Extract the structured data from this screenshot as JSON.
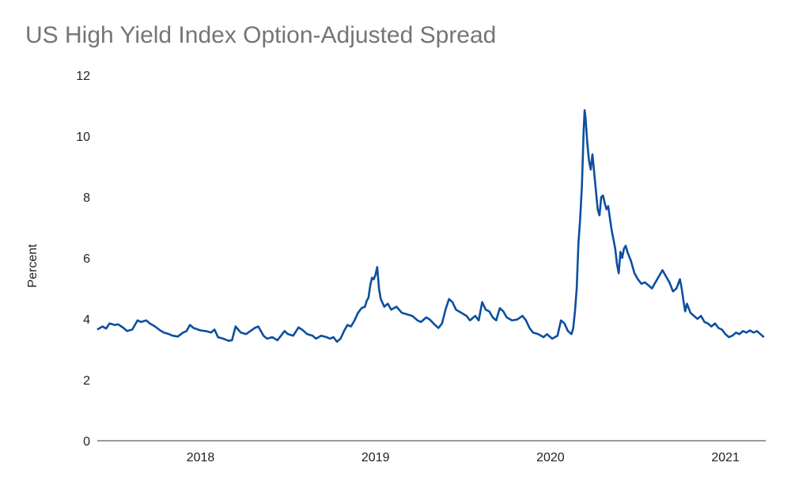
{
  "chart_data": {
    "type": "line",
    "title": "US High Yield Index Option-Adjusted Spread",
    "xlabel": "",
    "ylabel": "Percent",
    "xlim": [
      2017.43,
      2021.25
    ],
    "ylim": [
      0,
      12
    ],
    "yticks": [
      0,
      2,
      4,
      6,
      8,
      10,
      12
    ],
    "xticks": [
      2018,
      2019,
      2020,
      2021
    ],
    "grid": false,
    "legend": "none",
    "series": [
      {
        "color": "#0b4f9f",
        "points": [
          [
            2017.43,
            3.65
          ],
          [
            2017.46,
            3.75
          ],
          [
            2017.48,
            3.68
          ],
          [
            2017.5,
            3.85
          ],
          [
            2017.53,
            3.8
          ],
          [
            2017.55,
            3.82
          ],
          [
            2017.58,
            3.7
          ],
          [
            2017.6,
            3.6
          ],
          [
            2017.63,
            3.65
          ],
          [
            2017.66,
            3.95
          ],
          [
            2017.68,
            3.9
          ],
          [
            2017.71,
            3.95
          ],
          [
            2017.73,
            3.85
          ],
          [
            2017.76,
            3.75
          ],
          [
            2017.79,
            3.62
          ],
          [
            2017.81,
            3.55
          ],
          [
            2017.84,
            3.5
          ],
          [
            2017.86,
            3.45
          ],
          [
            2017.89,
            3.42
          ],
          [
            2017.92,
            3.55
          ],
          [
            2017.94,
            3.6
          ],
          [
            2017.96,
            3.8
          ],
          [
            2017.98,
            3.7
          ],
          [
            2018.02,
            3.62
          ],
          [
            2018.05,
            3.6
          ],
          [
            2018.08,
            3.55
          ],
          [
            2018.1,
            3.65
          ],
          [
            2018.12,
            3.4
          ],
          [
            2018.15,
            3.35
          ],
          [
            2018.18,
            3.28
          ],
          [
            2018.2,
            3.3
          ],
          [
            2018.22,
            3.75
          ],
          [
            2018.25,
            3.55
          ],
          [
            2018.28,
            3.5
          ],
          [
            2018.3,
            3.58
          ],
          [
            2018.33,
            3.7
          ],
          [
            2018.35,
            3.75
          ],
          [
            2018.38,
            3.45
          ],
          [
            2018.4,
            3.35
          ],
          [
            2018.43,
            3.4
          ],
          [
            2018.46,
            3.3
          ],
          [
            2018.48,
            3.45
          ],
          [
            2018.5,
            3.6
          ],
          [
            2018.52,
            3.5
          ],
          [
            2018.55,
            3.45
          ],
          [
            2018.58,
            3.72
          ],
          [
            2018.6,
            3.65
          ],
          [
            2018.63,
            3.5
          ],
          [
            2018.66,
            3.45
          ],
          [
            2018.68,
            3.35
          ],
          [
            2018.71,
            3.45
          ],
          [
            2018.74,
            3.4
          ],
          [
            2018.76,
            3.35
          ],
          [
            2018.78,
            3.4
          ],
          [
            2018.8,
            3.25
          ],
          [
            2018.82,
            3.35
          ],
          [
            2018.84,
            3.6
          ],
          [
            2018.86,
            3.8
          ],
          [
            2018.88,
            3.75
          ],
          [
            2018.9,
            3.95
          ],
          [
            2018.92,
            4.2
          ],
          [
            2018.94,
            4.35
          ],
          [
            2018.96,
            4.4
          ],
          [
            2018.97,
            4.6
          ],
          [
            2018.98,
            4.7
          ],
          [
            2018.99,
            5.1
          ],
          [
            2019.0,
            5.35
          ],
          [
            2019.01,
            5.3
          ],
          [
            2019.02,
            5.45
          ],
          [
            2019.03,
            5.7
          ],
          [
            2019.04,
            5.0
          ],
          [
            2019.05,
            4.65
          ],
          [
            2019.07,
            4.4
          ],
          [
            2019.09,
            4.5
          ],
          [
            2019.11,
            4.3
          ],
          [
            2019.14,
            4.4
          ],
          [
            2019.17,
            4.2
          ],
          [
            2019.2,
            4.15
          ],
          [
            2019.23,
            4.1
          ],
          [
            2019.26,
            3.95
          ],
          [
            2019.28,
            3.9
          ],
          [
            2019.31,
            4.05
          ],
          [
            2019.33,
            3.98
          ],
          [
            2019.36,
            3.8
          ],
          [
            2019.38,
            3.7
          ],
          [
            2019.4,
            3.85
          ],
          [
            2019.42,
            4.3
          ],
          [
            2019.44,
            4.65
          ],
          [
            2019.46,
            4.55
          ],
          [
            2019.48,
            4.3
          ],
          [
            2019.51,
            4.2
          ],
          [
            2019.54,
            4.1
          ],
          [
            2019.56,
            3.95
          ],
          [
            2019.59,
            4.1
          ],
          [
            2019.61,
            3.95
          ],
          [
            2019.63,
            4.55
          ],
          [
            2019.65,
            4.3
          ],
          [
            2019.67,
            4.25
          ],
          [
            2019.69,
            4.05
          ],
          [
            2019.71,
            3.95
          ],
          [
            2019.73,
            4.35
          ],
          [
            2019.75,
            4.25
          ],
          [
            2019.77,
            4.05
          ],
          [
            2019.8,
            3.95
          ],
          [
            2019.83,
            3.98
          ],
          [
            2019.86,
            4.1
          ],
          [
            2019.88,
            3.95
          ],
          [
            2019.9,
            3.7
          ],
          [
            2019.92,
            3.55
          ],
          [
            2019.95,
            3.5
          ],
          [
            2019.98,
            3.4
          ],
          [
            2020.0,
            3.5
          ],
          [
            2020.03,
            3.35
          ],
          [
            2020.06,
            3.45
          ],
          [
            2020.08,
            3.95
          ],
          [
            2020.1,
            3.85
          ],
          [
            2020.12,
            3.6
          ],
          [
            2020.14,
            3.5
          ],
          [
            2020.15,
            3.7
          ],
          [
            2020.16,
            4.25
          ],
          [
            2020.17,
            5.0
          ],
          [
            2020.18,
            6.5
          ],
          [
            2020.19,
            7.3
          ],
          [
            2020.2,
            8.4
          ],
          [
            2020.21,
            10.2
          ],
          [
            2020.215,
            10.85
          ],
          [
            2020.22,
            10.6
          ],
          [
            2020.23,
            9.8
          ],
          [
            2020.24,
            9.2
          ],
          [
            2020.25,
            8.9
          ],
          [
            2020.26,
            9.4
          ],
          [
            2020.27,
            8.8
          ],
          [
            2020.28,
            8.2
          ],
          [
            2020.29,
            7.6
          ],
          [
            2020.3,
            7.4
          ],
          [
            2020.31,
            8.0
          ],
          [
            2020.32,
            8.05
          ],
          [
            2020.33,
            7.8
          ],
          [
            2020.34,
            7.6
          ],
          [
            2020.35,
            7.7
          ],
          [
            2020.36,
            7.3
          ],
          [
            2020.37,
            6.9
          ],
          [
            2020.38,
            6.6
          ],
          [
            2020.39,
            6.3
          ],
          [
            2020.4,
            5.8
          ],
          [
            2020.41,
            5.5
          ],
          [
            2020.42,
            6.2
          ],
          [
            2020.43,
            6.0
          ],
          [
            2020.44,
            6.3
          ],
          [
            2020.45,
            6.4
          ],
          [
            2020.46,
            6.2
          ],
          [
            2020.48,
            5.9
          ],
          [
            2020.5,
            5.5
          ],
          [
            2020.52,
            5.3
          ],
          [
            2020.54,
            5.15
          ],
          [
            2020.56,
            5.2
          ],
          [
            2020.58,
            5.1
          ],
          [
            2020.6,
            5.0
          ],
          [
            2020.62,
            5.2
          ],
          [
            2020.64,
            5.4
          ],
          [
            2020.66,
            5.6
          ],
          [
            2020.68,
            5.4
          ],
          [
            2020.7,
            5.2
          ],
          [
            2020.72,
            4.9
          ],
          [
            2020.74,
            5.0
          ],
          [
            2020.76,
            5.3
          ],
          [
            2020.77,
            5.0
          ],
          [
            2020.78,
            4.6
          ],
          [
            2020.79,
            4.25
          ],
          [
            2020.8,
            4.5
          ],
          [
            2020.82,
            4.2
          ],
          [
            2020.84,
            4.1
          ],
          [
            2020.86,
            4.0
          ],
          [
            2020.88,
            4.1
          ],
          [
            2020.9,
            3.9
          ],
          [
            2020.92,
            3.85
          ],
          [
            2020.94,
            3.75
          ],
          [
            2020.96,
            3.85
          ],
          [
            2020.98,
            3.7
          ],
          [
            2021.0,
            3.65
          ],
          [
            2021.02,
            3.5
          ],
          [
            2021.04,
            3.4
          ],
          [
            2021.06,
            3.45
          ],
          [
            2021.08,
            3.55
          ],
          [
            2021.1,
            3.5
          ],
          [
            2021.12,
            3.6
          ],
          [
            2021.14,
            3.55
          ],
          [
            2021.16,
            3.62
          ],
          [
            2021.18,
            3.55
          ],
          [
            2021.2,
            3.6
          ],
          [
            2021.22,
            3.5
          ],
          [
            2021.24,
            3.4
          ]
        ]
      }
    ]
  }
}
